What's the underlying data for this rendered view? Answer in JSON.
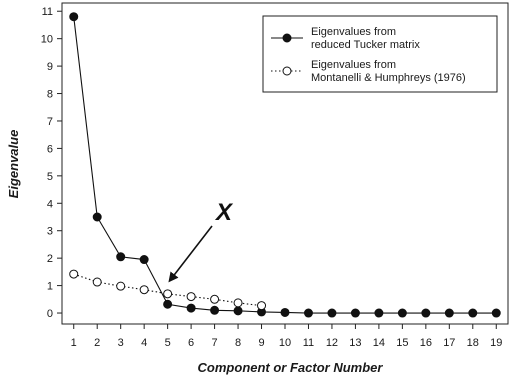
{
  "chart_data": {
    "type": "line",
    "title": "",
    "xlabel": "Component or Factor Number",
    "ylabel": "Eigenvalue",
    "x": [
      1,
      2,
      3,
      4,
      5,
      6,
      7,
      8,
      9,
      10,
      11,
      12,
      13,
      14,
      15,
      16,
      17,
      18,
      19
    ],
    "xlim": [
      0.5,
      19.5
    ],
    "ylim": [
      -0.4,
      11.3
    ],
    "yticks": [
      0,
      1,
      2,
      3,
      4,
      5,
      6,
      7,
      8,
      9,
      10,
      11
    ],
    "grid": false,
    "legend_position": "top-right",
    "series": [
      {
        "name_line1": "Eigenvalues from",
        "name_line2": "reduced Tucker matrix",
        "style": "solid",
        "marker": "filled-circle",
        "x": [
          1,
          2,
          3,
          4,
          5,
          6,
          7,
          8,
          9,
          10,
          11,
          12,
          13,
          14,
          15,
          16,
          17,
          18,
          19
        ],
        "values": [
          10.8,
          3.5,
          2.05,
          1.95,
          0.32,
          0.18,
          0.1,
          0.08,
          0.04,
          0.02,
          0.0,
          0.0,
          0.0,
          0.0,
          0.0,
          0.0,
          0.0,
          0.0,
          0.0
        ]
      },
      {
        "name_line1": "Eigenvalues from",
        "name_line2": "Montanelli & Humphreys (1976)",
        "style": "dotted",
        "marker": "open-circle",
        "x": [
          1,
          2,
          3,
          4,
          5,
          6,
          7,
          8,
          9
        ],
        "values": [
          1.42,
          1.13,
          0.98,
          0.85,
          0.7,
          0.6,
          0.5,
          0.37,
          0.27
        ]
      }
    ],
    "annotations": [
      {
        "text": "X",
        "arrow_to_x": 5,
        "arrow_to_y": 1.1
      }
    ]
  }
}
